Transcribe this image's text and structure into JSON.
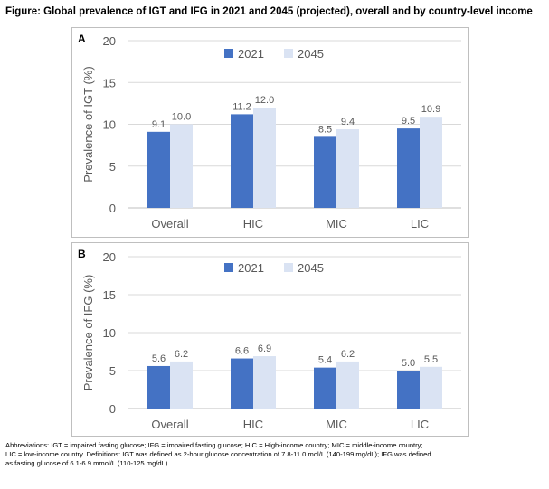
{
  "figure": {
    "title": "Figure: Global prevalence of IGT and IFG in 2021  and 2045  (projected), overall and by country-level income"
  },
  "colors": {
    "series_2021": "#4472C4",
    "series_2045": "#DAE3F3",
    "grid": "#D9D9D9",
    "axis_text": "#595959"
  },
  "chart_data": [
    {
      "type": "bar",
      "panel_label": "A",
      "categories": [
        "Overall",
        "HIC",
        "MIC",
        "LIC"
      ],
      "series": [
        {
          "name": "2021",
          "values": [
            9.1,
            11.2,
            8.5,
            9.5
          ],
          "labels": [
            "9.1",
            "11.2",
            "8.5",
            "9.5"
          ]
        },
        {
          "name": "2045",
          "values": [
            10.0,
            12.0,
            9.4,
            10.9
          ],
          "labels": [
            "10.0",
            "12.0",
            "9.4",
            "10.9"
          ]
        }
      ],
      "ylabel": "Prevalence of IGT (%)",
      "ylim": [
        0,
        20
      ],
      "yticks": [
        "0",
        "5",
        "10",
        "15",
        "20"
      ],
      "grid": true,
      "legend": "top-center"
    },
    {
      "type": "bar",
      "panel_label": "B",
      "categories": [
        "Overall",
        "HIC",
        "MIC",
        "LIC"
      ],
      "series": [
        {
          "name": "2021",
          "values": [
            5.6,
            6.6,
            5.4,
            5.0
          ],
          "labels": [
            "5.6",
            "6.6",
            "5.4",
            "5.0"
          ]
        },
        {
          "name": "2045",
          "values": [
            6.2,
            6.9,
            6.2,
            5.5
          ],
          "labels": [
            "6.2",
            "6.9",
            "6.2",
            "5.5"
          ]
        }
      ],
      "ylabel": "Prevalence of IFG (%)",
      "ylim": [
        0,
        20
      ],
      "yticks": [
        "0",
        "5",
        "10",
        "15",
        "20"
      ],
      "grid": true,
      "legend": "top-center"
    }
  ],
  "footnote": {
    "line1": "Abbreviations: IGT = impaired fasting glucose; IFG = impaired fasting glucose; HIC = High-income country; MIC = middle-income country;",
    "line2": "LIC = low-income country. Definitions: IGT was defined as 2-hour glucose concentration of 7.8-11.0 mol/L (140-199 mg/dL); IFG was defined",
    "line3": " as fasting glucose of 6.1-6.9 mmol/L (110-125 mg/dL)"
  }
}
